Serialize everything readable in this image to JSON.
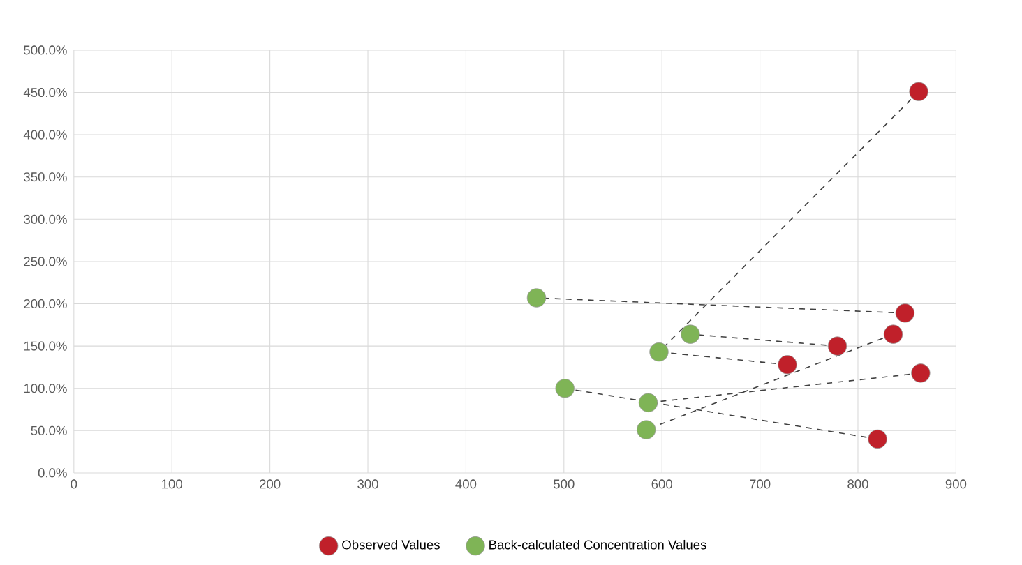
{
  "chart_data": {
    "type": "scatter",
    "xlim": [
      0,
      900
    ],
    "ylim": [
      0,
      500
    ],
    "xticks": [
      0,
      100,
      200,
      300,
      400,
      500,
      600,
      700,
      800,
      900
    ],
    "yticks": [
      {
        "value": 0,
        "label": "0.0%"
      },
      {
        "value": 50,
        "label": "50.0%"
      },
      {
        "value": 100,
        "label": "100.0%"
      },
      {
        "value": 150,
        "label": "150.0%"
      },
      {
        "value": 200,
        "label": "200.0%"
      },
      {
        "value": 250,
        "label": "250.0%"
      },
      {
        "value": 300,
        "label": "300.0%"
      },
      {
        "value": 350,
        "label": "350.0%"
      },
      {
        "value": 400,
        "label": "400.0%"
      },
      {
        "value": 450,
        "label": "450.0%"
      },
      {
        "value": 500,
        "label": "500.0%"
      }
    ],
    "grid": true,
    "legend": "bottom",
    "series": [
      {
        "name": "Observed Values",
        "marker": "circle",
        "color": "#c0202a",
        "x": [
          862,
          848,
          836,
          779,
          728,
          864,
          820
        ],
        "values": [
          451,
          189,
          164,
          150,
          128,
          118,
          40
        ]
      },
      {
        "name": "Back-calculated Concentration Values",
        "marker": "circle",
        "color": "#7fb456",
        "x": [
          472,
          629,
          597,
          501,
          586,
          584
        ],
        "values": [
          207,
          164,
          143,
          100,
          83,
          51
        ]
      },
      {
        "type": "line",
        "marker": "none",
        "line_style": "dashed",
        "color": "#404040",
        "x": [
          862,
          597
        ],
        "values": [
          451,
          143
        ]
      },
      {
        "type": "line",
        "marker": "none",
        "line_style": "dashed",
        "color": "#404040",
        "x": [
          848,
          472
        ],
        "values": [
          189,
          207
        ]
      },
      {
        "type": "line",
        "marker": "none",
        "line_style": "dashed",
        "color": "#404040",
        "x": [
          836,
          584
        ],
        "values": [
          164,
          51
        ]
      },
      {
        "type": "line",
        "marker": "none",
        "line_style": "dashed",
        "color": "#404040",
        "x": [
          779,
          629
        ],
        "values": [
          150,
          164
        ]
      },
      {
        "type": "line",
        "marker": "none",
        "line_style": "dashed",
        "color": "#404040",
        "x": [
          728,
          597
        ],
        "values": [
          128,
          143
        ]
      },
      {
        "type": "line",
        "marker": "none",
        "line_style": "dashed",
        "color": "#404040",
        "x": [
          864,
          586
        ],
        "values": [
          118,
          83
        ]
      },
      {
        "type": "line",
        "marker": "none",
        "line_style": "dashed",
        "color": "#404040",
        "x": [
          820,
          501
        ],
        "values": [
          40,
          100
        ]
      }
    ]
  }
}
